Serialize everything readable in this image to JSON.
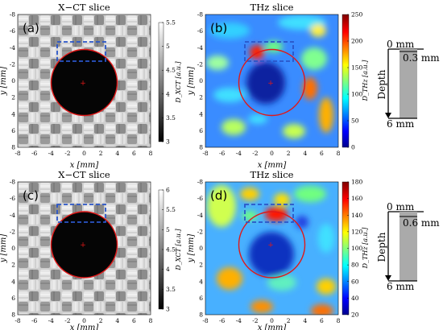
{
  "rows": [
    {
      "xct": {
        "title": "X−CT slice",
        "label": "(a)",
        "cbar_ticks": [
          "5.5",
          "5",
          "4.5",
          "4",
          "3.5",
          "3"
        ],
        "cbar_label": "D_XCT [a.u.]"
      },
      "thz": {
        "title": "THz slice",
        "label": "(b)",
        "cbar_ticks": [
          "250",
          "200",
          "150",
          "100",
          "50",
          "0"
        ],
        "cbar_label": "D_THz [a.u.]"
      },
      "depth": {
        "top": "0 mm",
        "defect": "0.3 mm",
        "axis": "Depth",
        "bottom": "6 mm"
      }
    },
    {
      "xct": {
        "title": "X−CT slice",
        "label": "(c)",
        "cbar_ticks": [
          "6",
          "5.5",
          "5",
          "4.5",
          "4",
          "3.5",
          "3"
        ],
        "cbar_label": "D_XCT [a.u.]"
      },
      "thz": {
        "title": "THz slice",
        "label": "(d)",
        "cbar_ticks": [
          "180",
          "160",
          "140",
          "120",
          "100",
          "80",
          "60",
          "40",
          "20"
        ],
        "cbar_label": "D_THz [a.u.]"
      },
      "depth": {
        "top": "0 mm",
        "defect": "0.6 mm",
        "axis": "Depth",
        "bottom": "6 mm"
      }
    }
  ],
  "axes": {
    "x_ticks": [
      "-8",
      "-6",
      "-4",
      "-2",
      "0",
      "2",
      "4",
      "6",
      "8"
    ],
    "y_ticks": [
      "-8",
      "-6",
      "-4",
      "-2",
      "0",
      "2",
      "4",
      "6",
      "8"
    ],
    "x_label": "x [mm]",
    "y_label": "y [mm]"
  },
  "colors": {
    "circle": "#e01818",
    "dashed_box": "#2a55c8",
    "depth_fill": "#aaaaaa"
  }
}
